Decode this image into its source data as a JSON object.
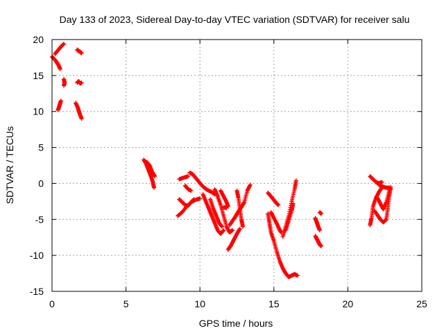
{
  "chart_data": {
    "type": "scatter",
    "title": "Day 133 of 2023, Sidereal Day-to-day VTEC variation (SDTVAR) for receiver salu",
    "xlabel": "GPS time / hours",
    "ylabel": "SDTVAR / TECUs",
    "xlim": [
      0,
      25
    ],
    "ylim": [
      -15,
      20
    ],
    "xticks": [
      0,
      5,
      10,
      15,
      20,
      25
    ],
    "yticks": [
      -15,
      -10,
      -5,
      0,
      5,
      10,
      15,
      20
    ],
    "grid": true,
    "marker": "+",
    "color": "#ff0000",
    "series": [
      {
        "name": "arc-00-0",
        "points": [
          [
            0.0,
            17.6
          ],
          [
            0.15,
            17.3
          ],
          [
            0.3,
            16.9
          ],
          [
            0.45,
            16.4
          ],
          [
            0.55,
            15.9
          ]
        ]
      },
      {
        "name": "arc-00-1",
        "points": [
          [
            0.2,
            18.0
          ],
          [
            0.4,
            18.5
          ],
          [
            0.6,
            19.0
          ],
          [
            0.8,
            19.4
          ]
        ]
      },
      {
        "name": "arc-00-2",
        "points": [
          [
            0.4,
            10.2
          ],
          [
            0.5,
            10.8
          ],
          [
            0.6,
            11.5
          ]
        ]
      },
      {
        "name": "arc-00-3",
        "points": [
          [
            0.8,
            14.5
          ],
          [
            0.85,
            14.0
          ],
          [
            0.8,
            13.6
          ]
        ]
      },
      {
        "name": "arc-01-0",
        "points": [
          [
            1.7,
            18.6
          ],
          [
            1.8,
            18.4
          ],
          [
            1.9,
            18.3
          ],
          [
            2.0,
            18.1
          ]
        ]
      },
      {
        "name": "arc-01-1",
        "points": [
          [
            1.7,
            14.0
          ],
          [
            1.8,
            14.2
          ],
          [
            1.9,
            13.9
          ],
          [
            2.0,
            14.0
          ]
        ]
      },
      {
        "name": "arc-01-2",
        "points": [
          [
            1.6,
            11.2
          ],
          [
            1.75,
            10.5
          ],
          [
            1.85,
            9.8
          ],
          [
            2.0,
            9.0
          ]
        ]
      },
      {
        "name": "arc-06-0",
        "points": [
          [
            6.2,
            3.3
          ],
          [
            6.35,
            2.8
          ],
          [
            6.5,
            2.0
          ],
          [
            6.65,
            1.2
          ],
          [
            6.8,
            0.3
          ],
          [
            6.9,
            -0.6
          ]
        ]
      },
      {
        "name": "arc-06-1",
        "points": [
          [
            6.4,
            3.0
          ],
          [
            6.6,
            2.5
          ],
          [
            6.8,
            1.5
          ],
          [
            6.95,
            1.0
          ]
        ]
      },
      {
        "name": "arc-08-0",
        "points": [
          [
            8.5,
            -4.5
          ],
          [
            8.8,
            -4.0
          ],
          [
            9.1,
            -3.2
          ],
          [
            9.4,
            -2.6
          ],
          [
            9.8,
            -2.2
          ],
          [
            10.0,
            -2.1
          ]
        ]
      },
      {
        "name": "arc-08-1",
        "points": [
          [
            8.6,
            -2.2
          ],
          [
            8.8,
            -2.6
          ],
          [
            9.0,
            -3.0
          ],
          [
            9.2,
            -3.1
          ],
          [
            9.4,
            -2.6
          ],
          [
            9.6,
            -2.2
          ]
        ]
      },
      {
        "name": "arc-08-2",
        "points": [
          [
            9.0,
            -0.3
          ],
          [
            9.2,
            -0.8
          ],
          [
            9.4,
            -1.0
          ]
        ]
      },
      {
        "name": "arc-09-0",
        "points": [
          [
            8.6,
            0.6
          ],
          [
            8.9,
            0.8
          ],
          [
            9.2,
            1.0
          ]
        ]
      },
      {
        "name": "arc-09-1",
        "points": [
          [
            9.3,
            1.5
          ],
          [
            9.5,
            1.3
          ],
          [
            9.7,
            0.8
          ],
          [
            9.9,
            0.3
          ],
          [
            10.1,
            -0.2
          ],
          [
            10.3,
            -0.6
          ],
          [
            10.5,
            -0.9
          ],
          [
            10.8,
            -1.2
          ],
          [
            11.0,
            -1.5
          ]
        ]
      },
      {
        "name": "arc-10-0",
        "points": [
          [
            10.2,
            -1.5
          ],
          [
            10.4,
            -2.5
          ],
          [
            10.6,
            -3.5
          ],
          [
            10.8,
            -4.5
          ],
          [
            11.0,
            -5.5
          ],
          [
            11.2,
            -6.5
          ],
          [
            11.4,
            -7.0
          ],
          [
            11.6,
            -6.5
          ]
        ]
      },
      {
        "name": "arc-10-1",
        "points": [
          [
            10.7,
            -2.2
          ],
          [
            10.9,
            -3.5
          ],
          [
            11.1,
            -4.5
          ],
          [
            11.3,
            -5.5
          ],
          [
            11.5,
            -6.0
          ]
        ]
      },
      {
        "name": "arc-11-0",
        "points": [
          [
            11.0,
            -0.8
          ],
          [
            11.2,
            -1.8
          ],
          [
            11.4,
            -3.0
          ],
          [
            11.6,
            -4.5
          ],
          [
            11.8,
            -6.0
          ],
          [
            12.0,
            -6.8
          ],
          [
            12.2,
            -6.5
          ]
        ]
      },
      {
        "name": "arc-11-1",
        "points": [
          [
            11.4,
            -1.0
          ],
          [
            11.6,
            -1.8
          ],
          [
            11.8,
            -2.6
          ],
          [
            11.9,
            -3.2
          ]
        ]
      },
      {
        "name": "arc-12-0",
        "points": [
          [
            11.9,
            -9.2
          ],
          [
            12.1,
            -8.6
          ],
          [
            12.3,
            -7.8
          ],
          [
            12.5,
            -7.0
          ],
          [
            12.7,
            -6.3
          ]
        ]
      },
      {
        "name": "arc-12-1",
        "points": [
          [
            12.0,
            -5.8
          ],
          [
            12.2,
            -5.2
          ],
          [
            12.4,
            -4.6
          ],
          [
            12.6,
            -3.9
          ],
          [
            12.8,
            -3.3
          ],
          [
            13.0,
            -2.6
          ],
          [
            13.2,
            -1.0
          ],
          [
            13.4,
            -0.2
          ]
        ]
      },
      {
        "name": "arc-12-2",
        "points": [
          [
            12.5,
            -1.0
          ],
          [
            12.6,
            -2.0
          ],
          [
            12.7,
            -3.5
          ],
          [
            12.8,
            -5.0
          ],
          [
            12.9,
            -6.0
          ]
        ]
      },
      {
        "name": "arc-13-0",
        "points": [
          [
            11.6,
            -3.3
          ],
          [
            11.8,
            -3.4
          ]
        ]
      },
      {
        "name": "arc-14-0",
        "points": [
          [
            14.6,
            -1.3
          ],
          [
            14.8,
            -1.8
          ],
          [
            15.0,
            -2.3
          ],
          [
            15.2,
            -2.8
          ],
          [
            15.3,
            -3.0
          ]
        ]
      },
      {
        "name": "arc-14-1",
        "points": [
          [
            14.6,
            -4.2
          ],
          [
            14.7,
            -5.5
          ],
          [
            14.8,
            -6.8
          ],
          [
            15.0,
            -8.0
          ],
          [
            15.2,
            -9.5
          ],
          [
            15.4,
            -10.8
          ],
          [
            15.6,
            -11.8
          ],
          [
            15.8,
            -12.5
          ],
          [
            16.0,
            -13.0
          ],
          [
            16.2,
            -12.8
          ],
          [
            16.4,
            -12.6
          ],
          [
            16.6,
            -12.8
          ]
        ]
      },
      {
        "name": "arc-15-0",
        "points": [
          [
            14.8,
            -4.0
          ],
          [
            15.0,
            -4.8
          ],
          [
            15.2,
            -5.6
          ],
          [
            15.4,
            -6.5
          ],
          [
            15.5,
            -6.8
          ]
        ]
      },
      {
        "name": "arc-16-0",
        "points": [
          [
            15.6,
            -7.4
          ],
          [
            15.8,
            -6.0
          ],
          [
            16.0,
            -4.5
          ],
          [
            16.2,
            -2.5
          ],
          [
            16.4,
            -0.8
          ],
          [
            16.5,
            0.4
          ]
        ]
      },
      {
        "name": "arc-16-1",
        "points": [
          [
            15.8,
            -6.5
          ],
          [
            16.0,
            -5.2
          ],
          [
            16.2,
            -3.8
          ],
          [
            16.3,
            -2.8
          ]
        ]
      },
      {
        "name": "arc-17-0",
        "points": [
          [
            17.8,
            -4.8
          ],
          [
            17.9,
            -5.4
          ],
          [
            18.0,
            -6.0
          ],
          [
            18.1,
            -6.5
          ]
        ]
      },
      {
        "name": "arc-17-1",
        "points": [
          [
            17.8,
            -7.3
          ],
          [
            17.9,
            -7.7
          ],
          [
            18.0,
            -8.1
          ],
          [
            18.1,
            -8.5
          ],
          [
            18.2,
            -8.7
          ]
        ]
      },
      {
        "name": "arc-17-2",
        "points": [
          [
            18.1,
            -4.0
          ],
          [
            18.2,
            -4.2
          ]
        ]
      },
      {
        "name": "arc-21-0",
        "points": [
          [
            21.5,
            -5.8
          ],
          [
            21.6,
            -4.8
          ],
          [
            21.7,
            -3.2
          ],
          [
            21.9,
            -2.0
          ],
          [
            22.1,
            -1.2
          ],
          [
            22.3,
            -0.6
          ]
        ]
      },
      {
        "name": "arc-21-1",
        "points": [
          [
            21.5,
            1.0
          ],
          [
            21.7,
            0.6
          ],
          [
            21.9,
            0.2
          ],
          [
            22.1,
            0.0
          ],
          [
            22.3,
            0.2
          ]
        ]
      },
      {
        "name": "arc-22-0",
        "points": [
          [
            21.8,
            -3.8
          ],
          [
            22.0,
            -4.4
          ],
          [
            22.2,
            -5.0
          ],
          [
            22.4,
            -5.4
          ],
          [
            22.6,
            -5.0
          ],
          [
            22.7,
            -3.5
          ],
          [
            22.8,
            -1.8
          ],
          [
            22.9,
            -0.5
          ]
        ]
      },
      {
        "name": "arc-22-1",
        "points": [
          [
            22.0,
            -2.0
          ],
          [
            22.2,
            -2.8
          ],
          [
            22.4,
            -3.6
          ],
          [
            22.6,
            -2.6
          ],
          [
            22.8,
            -1.0
          ]
        ]
      },
      {
        "name": "arc-22-2",
        "points": [
          [
            22.1,
            -0.2
          ],
          [
            22.3,
            -0.4
          ],
          [
            22.6,
            -0.6
          ],
          [
            22.8,
            -0.6
          ],
          [
            22.9,
            -0.8
          ]
        ]
      }
    ]
  }
}
